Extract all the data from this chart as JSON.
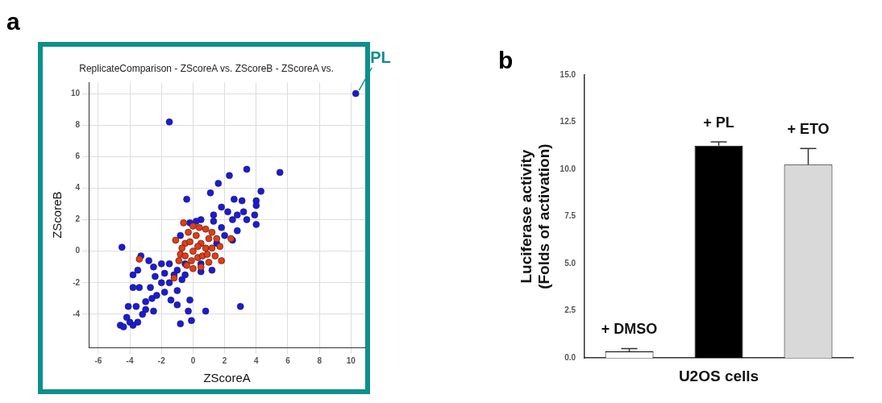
{
  "chart_data": [
    {
      "type": "scatter",
      "title": "ReplicateComparison - ZScoreA vs. ZScoreB - ZScoreA vs.",
      "xlabel": "ZScoreA",
      "ylabel": "ZScoreB",
      "xlim": [
        -6.6,
        10.9
      ],
      "ylim": [
        -6.1,
        10.7
      ],
      "xticks": [
        -6,
        -4,
        -2,
        0,
        2,
        4,
        6,
        8,
        10
      ],
      "yticks": [
        -4,
        -2,
        0,
        2,
        4,
        6,
        8,
        10
      ],
      "grid": true,
      "marker": "circle",
      "annotations": [
        "a",
        {
          "text": "PL",
          "x": 10.3,
          "y": 10
        }
      ],
      "series": [
        {
          "color": "#1a1adf",
          "x": [
            10.3,
            -1.5,
            3.4,
            5.5,
            2.3,
            1.6,
            4.3,
            1.1,
            -0.4,
            4,
            4,
            3.1,
            2.6,
            3.9,
            4,
            3.4,
            2.8,
            2.2,
            1.8,
            1.3,
            0.5,
            2.8,
            2.5,
            2,
            -4.5,
            -3.3,
            -3.5,
            -3.8,
            -2.8,
            -2.5,
            -2,
            -1.5,
            -1,
            -0.5,
            0.5,
            1.2,
            -3.4,
            -3.8,
            -2.7,
            -2,
            -1.5,
            -0.7,
            -2.6,
            -1.8,
            -1,
            -1.4,
            -1,
            -0.2,
            -4.1,
            -3.6,
            -3,
            -2.5,
            -0.3,
            0.8,
            3,
            -0.8,
            -0.1,
            -4.6,
            -4.4,
            -4,
            -3.5,
            -3.8,
            -3.2,
            -4.2,
            -3,
            -2.3,
            -1.2,
            -0.5,
            0.5,
            1.5,
            1.8,
            -0.2,
            -0.8,
            0.2,
            1.3,
            2.5,
            3.2,
            -2.4,
            -1.8
          ],
          "values": [
            10,
            8.2,
            5.2,
            5,
            4.8,
            4.3,
            3.8,
            3.7,
            3.3,
            3.2,
            2.9,
            3.2,
            3.3,
            2.3,
            1.7,
            2,
            2.3,
            2.5,
            2.8,
            2.3,
            2,
            1.3,
            0.7,
            1,
            0.25,
            -0.3,
            -1.2,
            -1.5,
            -0.6,
            -1,
            -0.8,
            -0.8,
            -1.2,
            -1.5,
            -1.3,
            -1.2,
            -2.3,
            -2.3,
            -2.3,
            -2,
            -2,
            -1.8,
            -3,
            -2.6,
            -2.5,
            -3.1,
            -3.4,
            -3.1,
            -3.5,
            -3.5,
            -3.2,
            -3.8,
            -3.8,
            -3.8,
            -3.5,
            -4.6,
            -4.4,
            -4.7,
            -4.8,
            -4.5,
            -4.5,
            -4.7,
            -4,
            -4.2,
            -3.7,
            -2.8,
            -1.5,
            -0.8,
            -0.8,
            0.5,
            1.5,
            1.8,
            1,
            1.9,
            1.9,
            2,
            2.5,
            -1.6,
            -1.4
          ]
        },
        {
          "color": "#e83a12",
          "x": [
            -1.2,
            -3.4,
            -0.6,
            -1.1,
            1.8,
            2.4,
            -0.8,
            -0.5,
            -0.3,
            0,
            0.4,
            0.8,
            1.2,
            1.5,
            1.7,
            1.4,
            1,
            0.5,
            0,
            -0.4,
            -0.9,
            0,
            0.5,
            -0.2,
            0.3,
            0.8,
            1,
            -0.5,
            0.2,
            0.6,
            1.2,
            -0.1,
            0.9,
            -0.7,
            0.3
          ],
          "values": [
            -1.7,
            -0.5,
            1.8,
            0.7,
            -0.6,
            0.8,
            -0.2,
            0.5,
            1.2,
            1.6,
            1.5,
            1.4,
            1.2,
            0.8,
            0.3,
            -0.3,
            -0.7,
            -1,
            -1.1,
            -0.9,
            -0.6,
            0,
            0.5,
            0.6,
            -0.4,
            0.2,
            0.8,
            -0.3,
            1,
            -0.3,
            0.2,
            -0.6,
            -0.2,
            0.2,
            0.3
          ]
        }
      ]
    },
    {
      "type": "bar",
      "xlabel": "U2OS cells",
      "ylabel": "Luciferase activity\n(Folds of activation)",
      "categories": [
        "+ DMSO",
        "+ PL",
        "+ ETO"
      ],
      "values": [
        0.35,
        11.25,
        10.25
      ],
      "errors": [
        0.15,
        0.2,
        0.85
      ],
      "colors": [
        "#ffffff",
        "#000000",
        "#d9d9d9"
      ],
      "ylim": [
        0,
        15
      ],
      "yticks": [
        {
          "value": 0,
          "label": "0.0"
        },
        2.5,
        {
          "value": 5,
          "label": "5.0"
        },
        7.5,
        {
          "value": 10,
          "label": "10.0"
        },
        12.5,
        {
          "value": 15,
          "label": "15.0"
        }
      ],
      "annotations": [
        "b"
      ]
    }
  ]
}
